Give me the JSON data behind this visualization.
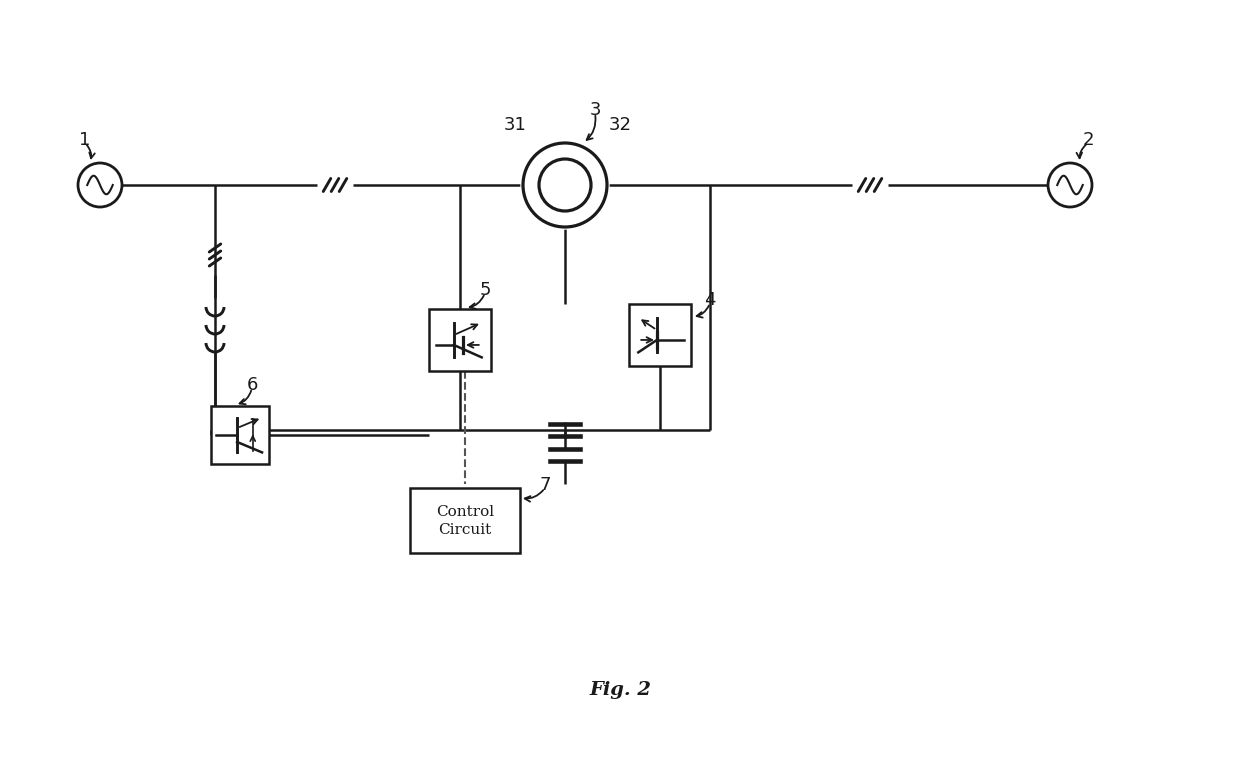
{
  "bg_color": "#ffffff",
  "line_color": "#1a1a1a",
  "fig_label": "Fig. 2",
  "fig_label_fontsize": 14,
  "lw": 1.8,
  "lw_thick": 2.2
}
